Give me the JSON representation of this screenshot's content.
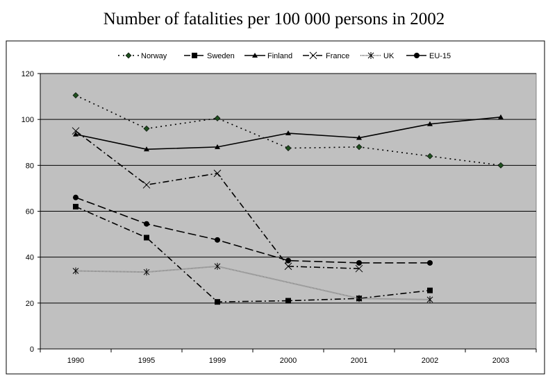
{
  "chart_data": {
    "type": "line",
    "title": "Number of fatalities per 100 000 persons in 2002",
    "categories": [
      "1990",
      "1995",
      "1999",
      "2000",
      "2001",
      "2002",
      "2003"
    ],
    "ylim": [
      0,
      120
    ],
    "yticks": [
      0,
      20,
      40,
      60,
      80,
      100,
      120
    ],
    "grid": "horizontal",
    "legend_position": "top",
    "plot_background": "#c0c0c0",
    "series": [
      {
        "name": "Norway",
        "values": [
          110.5,
          96,
          100.5,
          87.5,
          88,
          84,
          80
        ],
        "color": "#000000",
        "dash": "2,5",
        "marker": "diamond",
        "marker_color": "#1f4f1f"
      },
      {
        "name": "Sweden",
        "values": [
          62,
          48.5,
          20.5,
          21,
          22,
          25.5,
          null
        ],
        "color": "#000000",
        "dash": "9,4,2,4",
        "marker": "square",
        "marker_color": "#000000"
      },
      {
        "name": "Finland",
        "values": [
          93.5,
          87,
          88,
          94,
          92,
          98,
          101
        ],
        "color": "#000000",
        "dash": "",
        "marker": "triangle",
        "marker_color": "#000000"
      },
      {
        "name": "France",
        "values": [
          95,
          71.5,
          76.5,
          36,
          35,
          null,
          null
        ],
        "color": "#000000",
        "dash": "9,4,2,4",
        "marker": "x",
        "marker_color": "#000000"
      },
      {
        "name": "UK",
        "values": [
          34,
          33.5,
          36,
          null,
          22,
          21.5,
          null
        ],
        "color": "#7a7a7a",
        "dash": "1,1",
        "marker": "star",
        "marker_color": "#000000"
      },
      {
        "name": "EU-15",
        "values": [
          66,
          54.5,
          47.5,
          38.5,
          37.5,
          37.5,
          null
        ],
        "color": "#000000",
        "dash": "12,5",
        "marker": "circle",
        "marker_color": "#000000"
      }
    ]
  }
}
